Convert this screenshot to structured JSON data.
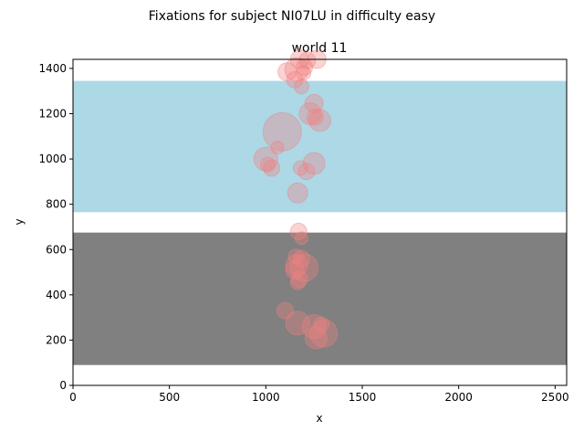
{
  "chart_data": {
    "type": "scatter",
    "suptitle": "Fixations for subject NI07LU in difficulty easy",
    "title": "world 11",
    "xlabel": "x",
    "ylabel": "y",
    "xlim": [
      0,
      2560
    ],
    "ylim": [
      0,
      1440
    ],
    "xticks": [
      0,
      500,
      1000,
      1500,
      2000,
      2500
    ],
    "yticks": [
      0,
      200,
      400,
      600,
      800,
      1000,
      1200,
      1400
    ],
    "grid": false,
    "regions": [
      {
        "name": "light-blue-band",
        "y0": 765,
        "y1": 1345,
        "color": "#add8e6"
      },
      {
        "name": "gray-band",
        "y0": 90,
        "y1": 675,
        "color": "#808080"
      }
    ],
    "marker_color": "#f08080",
    "marker_alpha": 0.35,
    "points": [
      {
        "x": 1175,
        "y": 1440,
        "s": 10
      },
      {
        "x": 1215,
        "y": 1435,
        "s": 9
      },
      {
        "x": 1265,
        "y": 1440,
        "s": 10
      },
      {
        "x": 1200,
        "y": 1405,
        "s": 9
      },
      {
        "x": 1110,
        "y": 1385,
        "s": 10
      },
      {
        "x": 1160,
        "y": 1395,
        "s": 13
      },
      {
        "x": 1195,
        "y": 1380,
        "s": 8
      },
      {
        "x": 1150,
        "y": 1350,
        "s": 9
      },
      {
        "x": 1185,
        "y": 1320,
        "s": 8
      },
      {
        "x": 1250,
        "y": 1245,
        "s": 10
      },
      {
        "x": 1230,
        "y": 1200,
        "s": 12
      },
      {
        "x": 1255,
        "y": 1185,
        "s": 9
      },
      {
        "x": 1280,
        "y": 1170,
        "s": 12
      },
      {
        "x": 1085,
        "y": 1120,
        "s": 21
      },
      {
        "x": 1060,
        "y": 1050,
        "s": 7
      },
      {
        "x": 1000,
        "y": 1000,
        "s": 13
      },
      {
        "x": 1010,
        "y": 975,
        "s": 8
      },
      {
        "x": 1030,
        "y": 960,
        "s": 9
      },
      {
        "x": 1250,
        "y": 980,
        "s": 12
      },
      {
        "x": 1180,
        "y": 960,
        "s": 8
      },
      {
        "x": 1210,
        "y": 945,
        "s": 9
      },
      {
        "x": 1165,
        "y": 850,
        "s": 11
      },
      {
        "x": 1170,
        "y": 680,
        "s": 9
      },
      {
        "x": 1185,
        "y": 650,
        "s": 7
      },
      {
        "x": 1155,
        "y": 570,
        "s": 8
      },
      {
        "x": 1185,
        "y": 560,
        "s": 9
      },
      {
        "x": 1160,
        "y": 530,
        "s": 12
      },
      {
        "x": 1200,
        "y": 520,
        "s": 15
      },
      {
        "x": 1150,
        "y": 510,
        "s": 10
      },
      {
        "x": 1175,
        "y": 470,
        "s": 9
      },
      {
        "x": 1165,
        "y": 455,
        "s": 8
      },
      {
        "x": 1100,
        "y": 330,
        "s": 9
      },
      {
        "x": 1165,
        "y": 275,
        "s": 13
      },
      {
        "x": 1250,
        "y": 260,
        "s": 13
      },
      {
        "x": 1290,
        "y": 270,
        "s": 8
      },
      {
        "x": 1300,
        "y": 230,
        "s": 15
      },
      {
        "x": 1260,
        "y": 210,
        "s": 12
      }
    ]
  }
}
